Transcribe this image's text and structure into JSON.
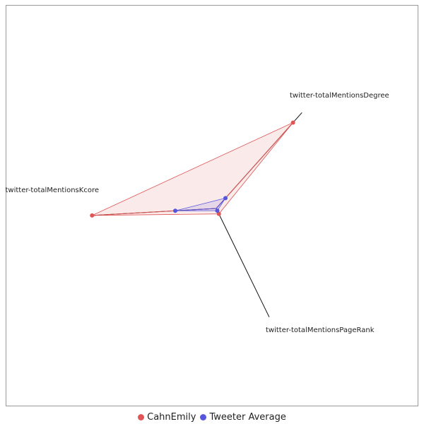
{
  "chart_data": {
    "type": "radar",
    "axes": [
      "twitter-totalMentionsDegree",
      "twitter-totalMentionsPageRank",
      "twitter-totalMentionsKcore"
    ],
    "series": [
      {
        "name": "CahnEmily",
        "color": "#e05555",
        "values": [
          1.0,
          0.05,
          1.0
        ]
      },
      {
        "name": "Tweeter Average",
        "color": "#5555dd",
        "values": [
          0.12,
          0.02,
          0.33
        ]
      }
    ],
    "rmax": 1.0,
    "legend_position": "bottom-center",
    "grid": false
  }
}
